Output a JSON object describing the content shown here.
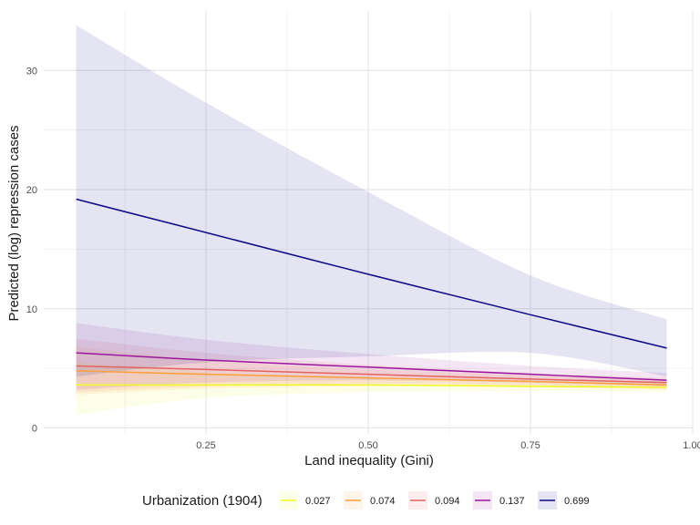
{
  "chart_data": {
    "type": "line",
    "title": "",
    "xlabel": "Land inequality (Gini)",
    "ylabel": "Predicted (log) repression cases",
    "xlim": [
      0.0,
      1.0
    ],
    "ylim": [
      -0.5,
      35
    ],
    "xticks": [
      0.25,
      0.5,
      0.75,
      1.0
    ],
    "xtick_labels": [
      "0.25",
      "0.50",
      "0.75",
      "1.00"
    ],
    "yticks": [
      0,
      10,
      20,
      30
    ],
    "ytick_labels": [
      "0",
      "10",
      "20",
      "30"
    ],
    "grid": true,
    "legend": {
      "title": "Urbanization (1904)",
      "position": "bottom"
    },
    "x": [
      0.05,
      0.25,
      0.5,
      0.75,
      0.96
    ],
    "series": [
      {
        "name": "0.027",
        "color": "#F0F921",
        "values": [
          3.6,
          3.6,
          3.6,
          3.5,
          3.4
        ],
        "lower": [
          1.1,
          2.5,
          3.0,
          3.1,
          3.0
        ],
        "upper": [
          5.5,
          4.7,
          4.2,
          3.9,
          3.8
        ]
      },
      {
        "name": "0.074",
        "color": "#FB9F3A",
        "values": [
          4.8,
          4.5,
          4.2,
          3.9,
          3.6
        ],
        "lower": [
          2.8,
          3.3,
          3.5,
          3.4,
          3.2
        ],
        "upper": [
          6.8,
          5.7,
          4.9,
          4.4,
          4.0
        ]
      },
      {
        "name": "0.094",
        "color": "#E16462",
        "values": [
          5.2,
          4.9,
          4.5,
          4.1,
          3.8
        ],
        "lower": [
          3.0,
          3.5,
          3.7,
          3.6,
          3.3
        ],
        "upper": [
          7.5,
          6.3,
          5.3,
          4.6,
          4.2
        ]
      },
      {
        "name": "0.137",
        "color": "#9C179E",
        "values": [
          6.3,
          5.7,
          5.1,
          4.5,
          4.0
        ],
        "lower": [
          3.2,
          3.8,
          4.0,
          3.8,
          3.5
        ],
        "upper": [
          8.8,
          7.4,
          6.2,
          5.2,
          4.6
        ]
      },
      {
        "name": "0.699",
        "color": "#0D0887",
        "values": [
          19.2,
          16.4,
          12.9,
          9.5,
          6.7
        ],
        "lower": [
          4.3,
          5.5,
          6.0,
          6.3,
          4.3
        ],
        "upper": [
          33.8,
          27.3,
          19.8,
          12.8,
          9.1
        ]
      }
    ]
  }
}
